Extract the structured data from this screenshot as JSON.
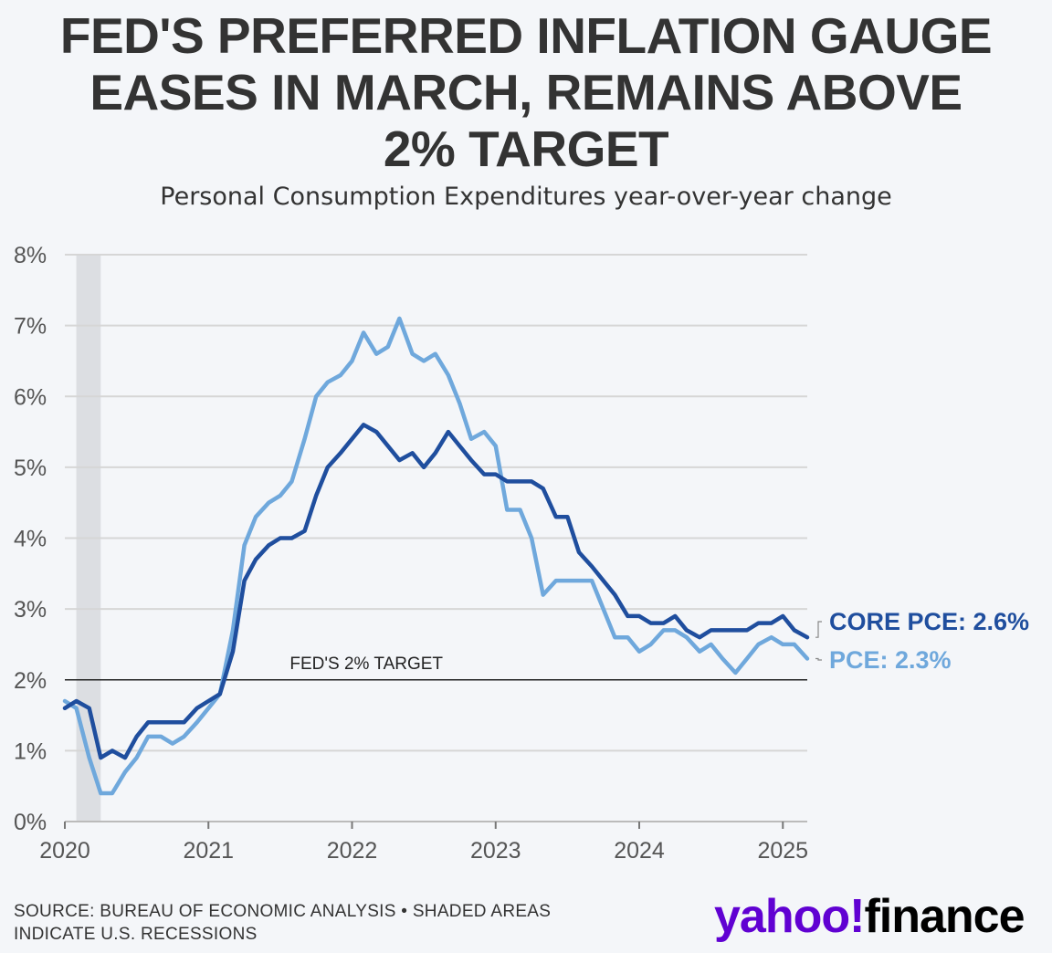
{
  "title_lines": [
    "FED'S PREFERRED INFLATION GAUGE",
    "EASES IN MARCH, REMAINS ABOVE",
    "2% TARGET"
  ],
  "subtitle": "Personal Consumption Expenditures year-over-year change",
  "source_lines": [
    "SOURCE: BUREAU OF ECONOMIC ANALYSIS • SHADED AREAS",
    "INDICATE U.S. RECESSIONS"
  ],
  "logo": {
    "part1": "yahoo!",
    "part2": "finance"
  },
  "colors": {
    "core": "#1f4e9e",
    "pce": "#6fa8dc",
    "recession": "#dcdee2",
    "grid": "#d6d6d6",
    "target": "#222222"
  },
  "chart_data": {
    "type": "line",
    "title": "FED'S PREFERRED INFLATION GAUGE EASES IN MARCH, REMAINS ABOVE 2% TARGET",
    "subtitle": "Personal Consumption Expenditures year-over-year change",
    "ylim": [
      0,
      8
    ],
    "y_ticks": [
      0,
      1,
      2,
      3,
      4,
      5,
      6,
      7,
      8
    ],
    "y_tick_labels": [
      "0%",
      "1%",
      "2%",
      "3%",
      "4%",
      "5%",
      "6%",
      "7%",
      "8%"
    ],
    "xlim": [
      2020.0,
      2025.17
    ],
    "x_ticks": [
      2020,
      2021,
      2022,
      2023,
      2024,
      2025
    ],
    "x_tick_labels": [
      "2020",
      "2021",
      "2022",
      "2023",
      "2024",
      "2025"
    ],
    "grid": true,
    "recession": [
      2020.08,
      2020.25
    ],
    "target": {
      "value": 2,
      "label": "FED'S 2% TARGET"
    },
    "series": [
      {
        "name": "PCE",
        "end_label": "PCE: 2.3%",
        "x": [
          2020.0,
          2020.08,
          2020.17,
          2020.25,
          2020.33,
          2020.42,
          2020.5,
          2020.58,
          2020.67,
          2020.75,
          2020.83,
          2020.92,
          2021.0,
          2021.08,
          2021.17,
          2021.25,
          2021.33,
          2021.42,
          2021.5,
          2021.58,
          2021.67,
          2021.75,
          2021.83,
          2021.92,
          2022.0,
          2022.08,
          2022.17,
          2022.25,
          2022.33,
          2022.42,
          2022.5,
          2022.58,
          2022.67,
          2022.75,
          2022.83,
          2022.92,
          2023.0,
          2023.08,
          2023.17,
          2023.25,
          2023.33,
          2023.42,
          2023.5,
          2023.58,
          2023.67,
          2023.75,
          2023.83,
          2023.92,
          2024.0,
          2024.08,
          2024.17,
          2024.25,
          2024.33,
          2024.42,
          2024.5,
          2024.58,
          2024.67,
          2024.75,
          2024.83,
          2024.92,
          2025.0,
          2025.08,
          2025.17
        ],
        "y": [
          1.7,
          1.6,
          0.9,
          0.4,
          0.4,
          0.7,
          0.9,
          1.2,
          1.2,
          1.1,
          1.2,
          1.4,
          1.6,
          1.8,
          2.7,
          3.9,
          4.3,
          4.5,
          4.6,
          4.8,
          5.4,
          6.0,
          6.2,
          6.3,
          6.5,
          6.9,
          6.6,
          6.7,
          7.1,
          6.6,
          6.5,
          6.6,
          6.3,
          5.9,
          5.4,
          5.5,
          5.3,
          4.4,
          4.4,
          4.0,
          3.2,
          3.4,
          3.4,
          3.4,
          3.4,
          3.0,
          2.6,
          2.6,
          2.4,
          2.5,
          2.7,
          2.7,
          2.6,
          2.4,
          2.5,
          2.3,
          2.1,
          2.3,
          2.5,
          2.6,
          2.5,
          2.5,
          2.3
        ]
      },
      {
        "name": "CORE PCE",
        "end_label": "CORE PCE: 2.6%",
        "x": [
          2020.0,
          2020.08,
          2020.17,
          2020.25,
          2020.33,
          2020.42,
          2020.5,
          2020.58,
          2020.67,
          2020.75,
          2020.83,
          2020.92,
          2021.0,
          2021.08,
          2021.17,
          2021.25,
          2021.33,
          2021.42,
          2021.5,
          2021.58,
          2021.67,
          2021.75,
          2021.83,
          2021.92,
          2022.0,
          2022.08,
          2022.17,
          2022.25,
          2022.33,
          2022.42,
          2022.5,
          2022.58,
          2022.67,
          2022.75,
          2022.83,
          2022.92,
          2023.0,
          2023.08,
          2023.17,
          2023.25,
          2023.33,
          2023.42,
          2023.5,
          2023.58,
          2023.67,
          2023.75,
          2023.83,
          2023.92,
          2024.0,
          2024.08,
          2024.17,
          2024.25,
          2024.33,
          2024.42,
          2024.5,
          2024.58,
          2024.67,
          2024.75,
          2024.83,
          2024.92,
          2025.0,
          2025.08,
          2025.17
        ],
        "y": [
          1.6,
          1.7,
          1.6,
          0.9,
          1.0,
          0.9,
          1.2,
          1.4,
          1.4,
          1.4,
          1.4,
          1.6,
          1.7,
          1.8,
          2.4,
          3.4,
          3.7,
          3.9,
          4.0,
          4.0,
          4.1,
          4.6,
          5.0,
          5.2,
          5.4,
          5.6,
          5.5,
          5.3,
          5.1,
          5.2,
          5.0,
          5.2,
          5.5,
          5.3,
          5.1,
          4.9,
          4.9,
          4.8,
          4.8,
          4.8,
          4.7,
          4.3,
          4.3,
          3.8,
          3.6,
          3.4,
          3.2,
          2.9,
          2.9,
          2.8,
          2.8,
          2.9,
          2.7,
          2.6,
          2.7,
          2.7,
          2.7,
          2.7,
          2.8,
          2.8,
          2.9,
          2.7,
          2.6
        ]
      }
    ]
  }
}
